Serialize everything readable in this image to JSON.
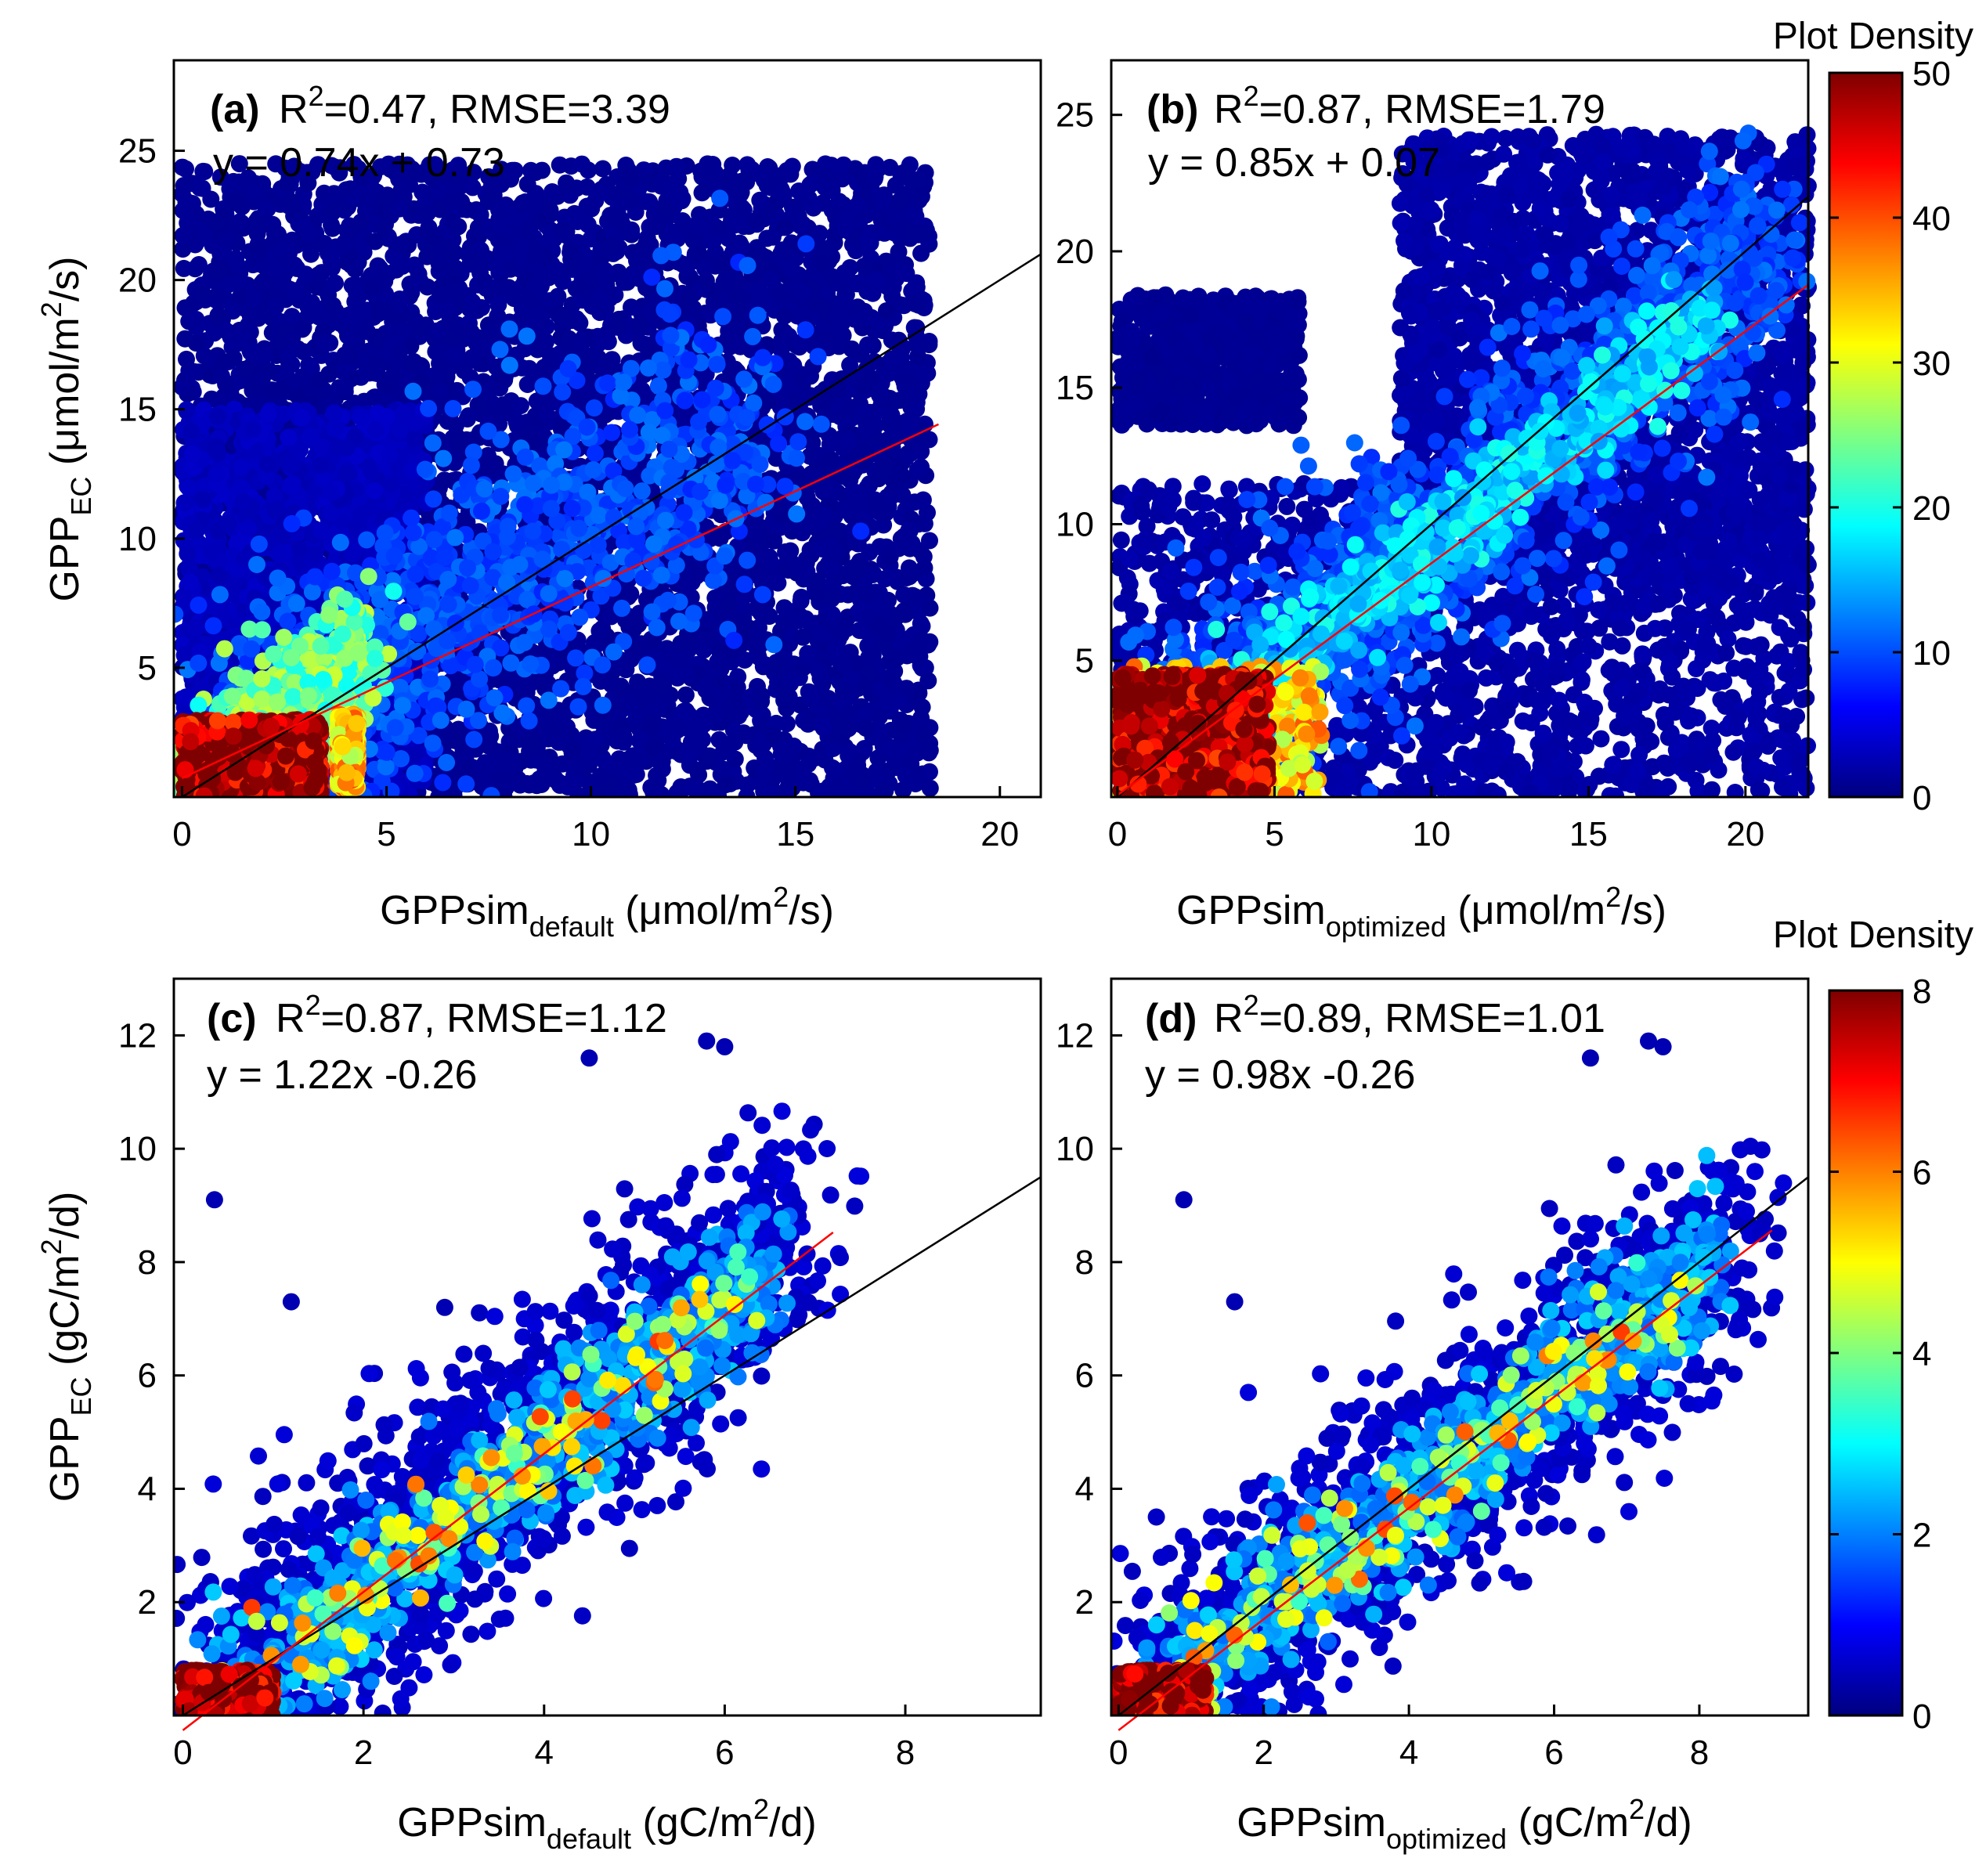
{
  "colormap_stops": [
    "#00007f",
    "#0000ff",
    "#0080ff",
    "#00ffff",
    "#80ff80",
    "#ffff00",
    "#ff8000",
    "#ff0000",
    "#7f0000"
  ],
  "fit_line_color": "#ff0000",
  "one_to_one_color": "#000000",
  "colorbars": [
    {
      "title": "Plot Density",
      "min": 0,
      "max": 50,
      "ticks": [
        0,
        10,
        20,
        30,
        40,
        50
      ]
    },
    {
      "title": "Plot Density",
      "min": 0,
      "max": 8,
      "ticks": [
        0,
        2,
        4,
        6,
        8
      ]
    }
  ],
  "chart_data": [
    {
      "type": "scatter",
      "panel": "(a)",
      "r2_text": "=0.47, RMSE=3.39",
      "eq_text": "y = 0.74x + 0.73",
      "xlabel_main": "GPPsim",
      "xlabel_sub": "default",
      "xlabel_unit_pre": "(μmol/m",
      "xlabel_unit_sup": "2",
      "xlabel_unit_post": "/s)",
      "ylabel_main": "GPP",
      "ylabel_sub": "EC",
      "ylabel_unit_pre": "(μmol/m",
      "ylabel_unit_sup": "2",
      "ylabel_unit_post": "/s)",
      "xlim": [
        -0.2,
        21
      ],
      "ylim": [
        0,
        28.5
      ],
      "xticks": [
        0,
        5,
        10,
        15,
        20
      ],
      "yticks": [
        5,
        10,
        15,
        20,
        25
      ],
      "fit": {
        "slope": 0.74,
        "intercept": 0.73,
        "x_range": [
          0,
          18.5
        ]
      },
      "one_to_one": {
        "x_range": [
          0,
          21
        ]
      },
      "density_max": 50,
      "clouds": [
        {
          "n": 5500,
          "x_range": [
            0,
            18.3
          ],
          "y_range": [
            0,
            24.5
          ],
          "density": 1
        },
        {
          "n": 1600,
          "x_range": [
            0,
            6
          ],
          "y_range": [
            0,
            15
          ],
          "density": 3
        },
        {
          "n": 1200,
          "along": [
            0.5,
            14
          ],
          "slope": 1.05,
          "offset": 0.3,
          "spread": 2.8,
          "density": 10
        },
        {
          "n": 600,
          "along": [
            0,
            4.5
          ],
          "slope": 1.2,
          "offset": 0.3,
          "spread": 1.2,
          "density": 24
        },
        {
          "n": 400,
          "x_range": [
            3.8,
            4.3
          ],
          "y_range": [
            0.3,
            3.2
          ],
          "density": 34
        },
        {
          "n": 900,
          "x_range": [
            0,
            3.4
          ],
          "y_range": [
            0,
            3
          ],
          "density": 50
        }
      ]
    },
    {
      "type": "scatter",
      "panel": "(b)",
      "r2_text": "=0.87, RMSE=1.79",
      "eq_text": "y = 0.85x + 0.07",
      "xlabel_main": "GPPsim",
      "xlabel_sub": "optimized",
      "xlabel_unit_pre": "(μmol/m",
      "xlabel_unit_sup": "2",
      "xlabel_unit_post": "/s)",
      "xlim": [
        -0.2,
        22
      ],
      "ylim": [
        0,
        27
      ],
      "xticks": [
        0,
        5,
        10,
        15,
        20
      ],
      "yticks": [
        5,
        10,
        15,
        20,
        25
      ],
      "fit": {
        "slope": 0.85,
        "intercept": 0.07,
        "x_range": [
          0,
          22
        ]
      },
      "one_to_one": {
        "x_range": [
          0,
          22
        ]
      },
      "density_max": 50,
      "clouds": [
        {
          "n": 1800,
          "x_range": [
            0,
            22
          ],
          "y_range": [
            0,
            11.5
          ],
          "density": 2
        },
        {
          "n": 600,
          "x_range": [
            0,
            5.8
          ],
          "y_range": [
            13.6,
            18.4
          ],
          "density": 1
        },
        {
          "n": 2200,
          "x_range": [
            9,
            22
          ],
          "y_range": [
            8,
            24.3
          ],
          "density": 2
        },
        {
          "n": 1500,
          "along": [
            1,
            21
          ],
          "slope": 0.95,
          "offset": 0.1,
          "spread": 2.2,
          "density": 10
        },
        {
          "n": 600,
          "along": [
            1,
            19
          ],
          "slope": 0.93,
          "offset": 0,
          "spread": 1.0,
          "density": 17
        },
        {
          "n": 350,
          "x_range": [
            0,
            6.5
          ],
          "y_range": [
            0,
            4.8
          ],
          "density": 33
        },
        {
          "n": 900,
          "x_range": [
            0,
            4.8
          ],
          "y_range": [
            0,
            4.5
          ],
          "density": 50
        }
      ]
    },
    {
      "type": "scatter",
      "panel": "(c)",
      "r2_text": "=0.87, RMSE=1.12",
      "eq_text": "y = 1.22x -0.26",
      "xlabel_main": "GPPsim",
      "xlabel_sub": "default",
      "xlabel_unit_pre": "(gC/m",
      "xlabel_unit_sup": "2",
      "xlabel_unit_post": "/d)",
      "ylabel_main": "GPP",
      "ylabel_sub": "EC",
      "ylabel_unit_pre": "(gC/m",
      "ylabel_unit_sup": "2",
      "ylabel_unit_post": "/d)",
      "xlim": [
        -0.1,
        9.5
      ],
      "ylim": [
        0,
        13
      ],
      "xticks": [
        0,
        2,
        4,
        6,
        8
      ],
      "yticks": [
        2,
        4,
        6,
        8,
        10,
        12
      ],
      "fit": {
        "slope": 1.22,
        "intercept": -0.26,
        "x_range": [
          0,
          7.2
        ]
      },
      "one_to_one": {
        "x_range": [
          0,
          9.5
        ]
      },
      "density_max": 8,
      "clouds": [
        {
          "n": 1500,
          "along": [
            0.3,
            6.8
          ],
          "slope": 1.28,
          "offset": -0.2,
          "spread": 1.1,
          "density": 0.6
        },
        {
          "n": 700,
          "along": [
            0.5,
            6.5
          ],
          "slope": 1.25,
          "offset": -0.2,
          "spread": 0.6,
          "density": 2.2
        },
        {
          "n": 120,
          "along": [
            0.8,
            6.3
          ],
          "slope": 1.25,
          "offset": -0.2,
          "spread": 0.5,
          "density": 4.2
        },
        {
          "n": 50,
          "along": [
            1,
            6
          ],
          "slope": 1.22,
          "offset": -0.2,
          "spread": 0.4,
          "density": 5.5
        },
        {
          "n": 450,
          "x_range": [
            0,
            1
          ],
          "y_range": [
            0,
            0.8
          ],
          "density": 8
        }
      ],
      "extra_points": [
        [
          0.35,
          9.1
        ],
        [
          1.2,
          7.3
        ],
        [
          2.9,
          7.2
        ],
        [
          5.8,
          11.9
        ],
        [
          6.0,
          11.8
        ],
        [
          4.5,
          11.6
        ]
      ]
    },
    {
      "type": "scatter",
      "panel": "(d)",
      "r2_text": "=0.89, RMSE=1.01",
      "eq_text": "y = 0.98x -0.26",
      "xlabel_main": "GPPsim",
      "xlabel_sub": "optimized",
      "xlabel_unit_pre": "(gC/m",
      "xlabel_unit_sup": "2",
      "xlabel_unit_post": "/d)",
      "xlim": [
        -0.1,
        9.5
      ],
      "ylim": [
        0,
        13
      ],
      "xticks": [
        0,
        2,
        4,
        6,
        8
      ],
      "yticks": [
        2,
        4,
        6,
        8,
        10,
        12
      ],
      "fit": {
        "slope": 0.98,
        "intercept": -0.26,
        "x_range": [
          0,
          9
        ]
      },
      "one_to_one": {
        "x_range": [
          0,
          9.5
        ]
      },
      "density_max": 8,
      "clouds": [
        {
          "n": 1500,
          "along": [
            0.3,
            8.5
          ],
          "slope": 1.0,
          "offset": -0.1,
          "spread": 1.0,
          "density": 0.6
        },
        {
          "n": 700,
          "along": [
            0.5,
            8.2
          ],
          "slope": 1.0,
          "offset": -0.15,
          "spread": 0.6,
          "density": 2.2
        },
        {
          "n": 120,
          "along": [
            0.8,
            7.8
          ],
          "slope": 1.0,
          "offset": -0.2,
          "spread": 0.5,
          "density": 4.2
        },
        {
          "n": 50,
          "along": [
            1,
            7.5
          ],
          "slope": 0.98,
          "offset": -0.2,
          "spread": 0.4,
          "density": 5.5
        },
        {
          "n": 450,
          "x_range": [
            0,
            1.2
          ],
          "y_range": [
            0,
            0.8
          ],
          "density": 8
        }
      ],
      "extra_points": [
        [
          0.9,
          9.1
        ],
        [
          1.6,
          7.3
        ],
        [
          7.3,
          11.9
        ],
        [
          7.5,
          11.8
        ],
        [
          6.5,
          11.6
        ]
      ]
    }
  ]
}
